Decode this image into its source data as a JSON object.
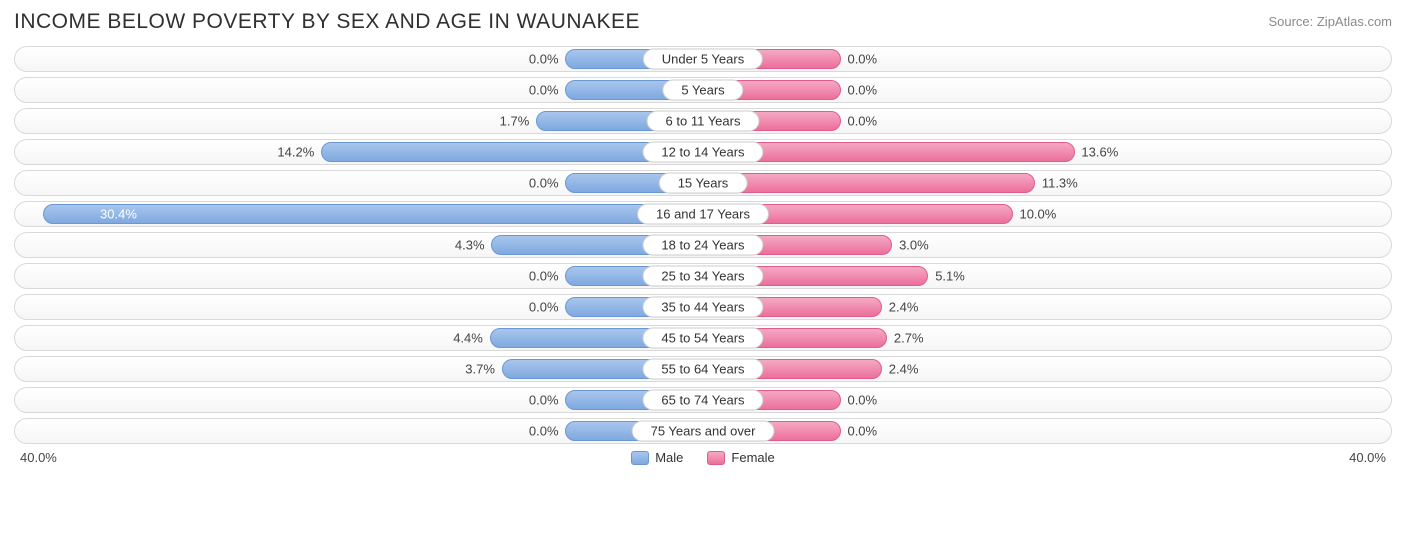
{
  "title": "INCOME BELOW POVERTY BY SEX AND AGE IN WAUNAKEE",
  "source": "Source: ZipAtlas.com",
  "chart": {
    "type": "diverging-bar",
    "axis_max": 40.0,
    "axis_label_left": "40.0%",
    "axis_label_right": "40.0%",
    "min_bar_pct": 10.0,
    "male_color_top": "#a8c6ed",
    "male_color_bottom": "#7fa9e0",
    "male_border": "#6b97d1",
    "female_color_top": "#f5a9c3",
    "female_color_bottom": "#ec6f9c",
    "female_border": "#e05c8c",
    "track_border": "#d9d9d9",
    "track_bg_top": "#ffffff",
    "track_bg_bottom": "#f6f6f6",
    "label_fontsize": 13,
    "title_fontsize": 21,
    "categories": [
      {
        "label": "Under 5 Years",
        "male": 0.0,
        "female": 0.0
      },
      {
        "label": "5 Years",
        "male": 0.0,
        "female": 0.0
      },
      {
        "label": "6 to 11 Years",
        "male": 1.7,
        "female": 0.0
      },
      {
        "label": "12 to 14 Years",
        "male": 14.2,
        "female": 13.6
      },
      {
        "label": "15 Years",
        "male": 0.0,
        "female": 11.3
      },
      {
        "label": "16 and 17 Years",
        "male": 30.4,
        "female": 10.0
      },
      {
        "label": "18 to 24 Years",
        "male": 4.3,
        "female": 3.0
      },
      {
        "label": "25 to 34 Years",
        "male": 0.0,
        "female": 5.1
      },
      {
        "label": "35 to 44 Years",
        "male": 0.0,
        "female": 2.4
      },
      {
        "label": "45 to 54 Years",
        "male": 4.4,
        "female": 2.7
      },
      {
        "label": "55 to 64 Years",
        "male": 3.7,
        "female": 2.4
      },
      {
        "label": "65 to 74 Years",
        "male": 0.0,
        "female": 0.0
      },
      {
        "label": "75 Years and over",
        "male": 0.0,
        "female": 0.0
      }
    ]
  },
  "legend": {
    "male": "Male",
    "female": "Female"
  }
}
